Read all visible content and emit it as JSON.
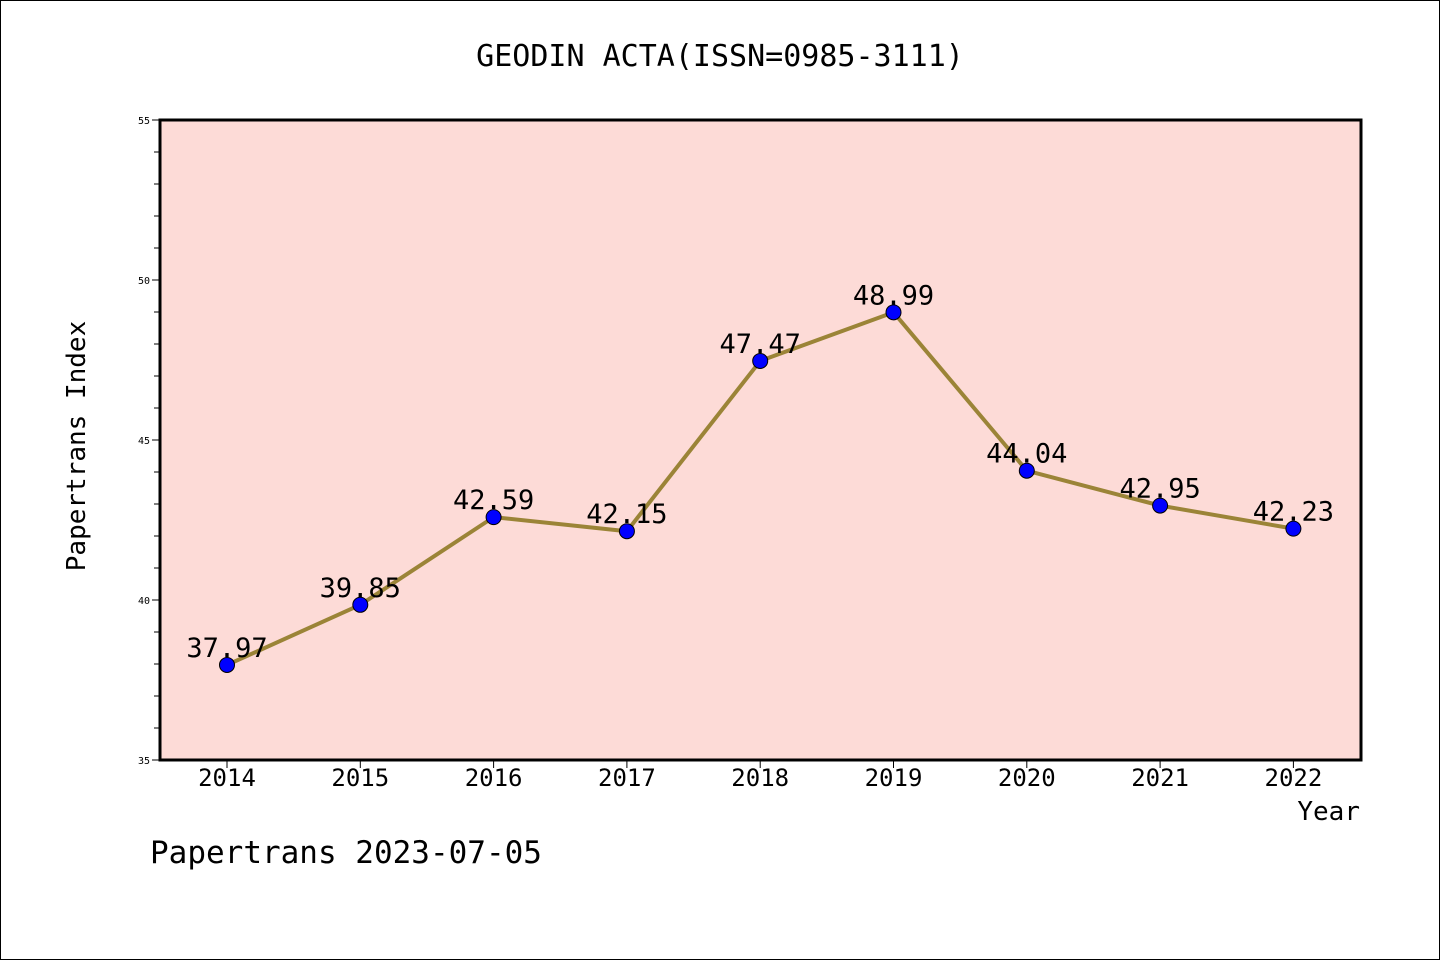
{
  "colors": {
    "plot_background": "#fddbd7",
    "line": "#9b8437",
    "marker": "#0000ff",
    "axis": "#000000"
  },
  "footer": "Papertrans 2023-07-05",
  "chart_data": {
    "type": "line",
    "title": "GEODIN ACTA(ISSN=0985-3111)",
    "xlabel": "Year",
    "ylabel": "Papertrans Index",
    "categories": [
      "2014",
      "2015",
      "2016",
      "2017",
      "2018",
      "2019",
      "2020",
      "2021",
      "2022"
    ],
    "values": [
      37.97,
      39.85,
      42.59,
      42.15,
      47.47,
      48.99,
      44.04,
      42.95,
      42.23
    ],
    "data_labels": [
      "37.97",
      "39.85",
      "42.59",
      "42.15",
      "47.47",
      "48.99",
      "44.04",
      "42.95",
      "42.23"
    ],
    "ylim": [
      35,
      55
    ],
    "yticks": [
      "35",
      "40",
      "45",
      "50",
      "55"
    ],
    "y_minor_step": 1,
    "marker": "circle",
    "grid": false,
    "legend": "none"
  }
}
